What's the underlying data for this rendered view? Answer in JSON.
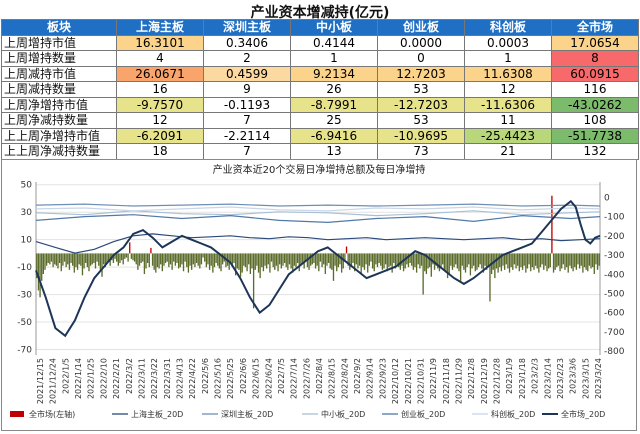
{
  "table": {
    "title": "产业资本增减持(亿元)",
    "headers": [
      "板块",
      "上海主板",
      "深圳主板",
      "中小板",
      "创业板",
      "科创板",
      "全市场"
    ],
    "rows": [
      {
        "label": "上周增持市值",
        "values": [
          "16.3101",
          "0.3406",
          "0.4144",
          "0.0000",
          "0.0003",
          "17.0654"
        ],
        "colors": [
          "#fbd38a",
          "#ffffff",
          "#ffffff",
          "#ffffff",
          "#ffffff",
          "#fbd38a"
        ]
      },
      {
        "label": "上周增持数量",
        "values": [
          "4",
          "2",
          "1",
          "0",
          "1",
          "8"
        ],
        "colors": [
          "#ffffff",
          "#ffffff",
          "#ffffff",
          "#ffffff",
          "#ffffff",
          "#f8696b"
        ]
      },
      {
        "label": "上周减持市值",
        "values": [
          "26.0671",
          "0.4599",
          "9.2134",
          "12.7203",
          "11.6308",
          "60.0915"
        ],
        "colors": [
          "#f9a46b",
          "#fcd9a0",
          "#fbd38a",
          "#fbd38a",
          "#fbd38a",
          "#f8696b"
        ]
      },
      {
        "label": "上周减持数量",
        "values": [
          "16",
          "9",
          "26",
          "53",
          "12",
          "116"
        ],
        "colors": [
          "#ffffff",
          "#ffffff",
          "#ffffff",
          "#ffffff",
          "#ffffff",
          "#ffffff"
        ]
      },
      {
        "label": "上周净增持市值",
        "values": [
          "-9.7570",
          "-0.1193",
          "-8.7991",
          "-12.7203",
          "-11.6306",
          "-43.0262"
        ],
        "colors": [
          "#e6e38a",
          "#ffffff",
          "#e6e38a",
          "#e6e38a",
          "#e6e38a",
          "#7cbb6b"
        ]
      },
      {
        "label": "上周净减持数量",
        "values": [
          "12",
          "7",
          "25",
          "53",
          "11",
          "108"
        ],
        "colors": [
          "#ffffff",
          "#ffffff",
          "#ffffff",
          "#ffffff",
          "#ffffff",
          "#ffffff"
        ]
      },
      {
        "label": "上上周净增持市值",
        "values": [
          "-6.2091",
          "-2.2114",
          "-6.9416",
          "-10.9695",
          "-25.4423",
          "-51.7738"
        ],
        "colors": [
          "#e6e38a",
          "#ffffff",
          "#e6e38a",
          "#e6e38a",
          "#b8d77a",
          "#7cbb6b"
        ]
      },
      {
        "label": "上上周净减持数量",
        "values": [
          "18",
          "7",
          "13",
          "73",
          "21",
          "132"
        ],
        "colors": [
          "#ffffff",
          "#ffffff",
          "#ffffff",
          "#ffffff",
          "#ffffff",
          "#ffffff"
        ]
      }
    ]
  },
  "chart_data": {
    "type": "bar",
    "title": "产业资本近20个交易日净增持总额及每日净增持",
    "left_axis": {
      "ticks": [
        50,
        30,
        10,
        -10,
        -30,
        -50,
        -70
      ],
      "ylim": [
        -74,
        52
      ]
    },
    "right_axis": {
      "ticks": [
        0,
        -100,
        -200,
        -300,
        -400,
        -500,
        -600,
        -700,
        -800
      ],
      "ylim": [
        -820,
        80
      ]
    },
    "x_labels": [
      "2021/12/15",
      "2021/12/24",
      "2022/1/5",
      "2022/1/14",
      "2022/1/25",
      "2022/2/10",
      "2022/2/21",
      "2022/3/2",
      "2022/3/11",
      "2022/3/22",
      "2022/3/31",
      "2022/4/13",
      "2022/4/22",
      "2022/5/6",
      "2022/5/16",
      "2022/5/25",
      "2022/6/6",
      "2022/6/15",
      "2022/6/24",
      "2022/7/5",
      "2022/7/14",
      "2022/7/26",
      "2022/8/4",
      "2022/8/15",
      "2022/8/24",
      "2022/9/2",
      "2022/9/14",
      "2022/9/23",
      "2022/10/12",
      "2022/10/21",
      "2022/10/31",
      "2022/11/9",
      "2022/11/18",
      "2022/11/29",
      "2022/12/8",
      "2022/12/19",
      "2022/12/28",
      "2023/1/9",
      "2023/1/18",
      "2023/2/3",
      "2023/2/14",
      "2023/2/23",
      "2023/3/6",
      "2023/3/15",
      "2023/3/24"
    ],
    "bar_series": {
      "name": "全市场(左轴)",
      "axis": "left",
      "color": "#c00000",
      "negative_color": "#5a6b2a",
      "values": [
        -18,
        -27,
        -32,
        -20,
        -15,
        -12,
        -9,
        -7,
        -8,
        -6,
        -10,
        -8,
        -9,
        -11,
        -7,
        -13,
        -9,
        -6,
        -10,
        -8,
        -12,
        -7,
        -9,
        -14,
        -10,
        -12,
        -8,
        -9,
        -16,
        -11,
        -7,
        -10,
        -13,
        -9,
        -8,
        -7,
        -11,
        -6,
        -9,
        -12,
        -17,
        -8,
        -10,
        -7,
        -6,
        -9,
        -5,
        -7,
        -4,
        -6,
        -9,
        -7,
        -5,
        -8,
        -4,
        -3,
        -6,
        8,
        -4,
        -5,
        -6,
        -8,
        -12,
        -9,
        -7,
        -6,
        -15,
        -11,
        -7,
        -10,
        4,
        -9,
        -12,
        -14,
        -10,
        -11,
        -8,
        -13,
        -9,
        -7,
        -6,
        -10,
        -8,
        -12,
        -6,
        -9,
        -7,
        -11,
        -10,
        -8,
        -13,
        -6,
        -10,
        -14,
        -9,
        -12,
        -8,
        -10,
        -7,
        -9,
        -11,
        -8,
        -3,
        -6,
        -10,
        -8,
        -12,
        -9,
        -14,
        -10,
        -7,
        -9,
        -11,
        -13,
        -8,
        -6,
        -10,
        -9,
        -12,
        -8,
        -10,
        -7,
        -16,
        -11,
        -12,
        -17,
        -14,
        -9,
        -10,
        -13,
        -8,
        -15,
        -11,
        -40,
        -12,
        -9,
        -14,
        -18,
        -10,
        -13,
        -9,
        -11,
        -8,
        -14,
        -6,
        -10,
        -12,
        -9,
        -13,
        -8,
        -11,
        -9,
        -7,
        -10,
        -12,
        -8,
        -11,
        -14,
        -9,
        -10,
        -7,
        -13,
        -9,
        -8,
        -11,
        -6,
        -10,
        -12,
        -9,
        -8,
        -7,
        -11,
        -9,
        -13,
        -6,
        -10,
        -8,
        -15,
        -9,
        -7,
        -11,
        -12,
        -20,
        -9,
        -13,
        -10,
        -8,
        -14,
        -11,
        -6,
        5,
        -9,
        -12,
        -10,
        -7,
        -13,
        -8,
        -11,
        -9,
        -15,
        -10,
        -12,
        -8,
        -14,
        -9,
        -6,
        -11,
        -13,
        -8,
        -10,
        -7,
        -9,
        -12,
        -11,
        -8,
        -13,
        -10,
        -9,
        -14,
        -7,
        -11,
        -8,
        -10,
        -12,
        -9,
        -13,
        -11,
        -8,
        -10,
        -7,
        -9,
        -12,
        -10,
        -14,
        -8,
        -11,
        -9,
        -30,
        -13,
        -15,
        -11,
        -10,
        -17,
        -8,
        -12,
        -9,
        -11,
        -13,
        -10,
        -8,
        -12,
        -14,
        -18,
        -15,
        -9,
        -12,
        -10,
        -8,
        -11,
        -13,
        -20,
        -9,
        -12,
        -14,
        -10,
        -8,
        -16,
        -11,
        -9,
        -13,
        -12,
        -10,
        -8,
        -11,
        -14,
        -9,
        -12,
        -10,
        -35,
        -15,
        -12,
        -18,
        -11,
        -14,
        -10,
        -13,
        -9,
        -12,
        -8,
        -11,
        -14,
        -10,
        -12,
        -8,
        -11,
        -9,
        -13,
        -10,
        -12,
        -9,
        -14,
        -11,
        -8,
        -13,
        -10,
        -12,
        -9,
        -11,
        -14,
        -10,
        -8,
        -12,
        -9,
        -13,
        -11,
        -10,
        42,
        -14,
        -12,
        -10,
        -9,
        -13,
        -11,
        -8,
        -12,
        -10,
        -14,
        -9,
        -11,
        -13,
        -10,
        -12,
        -8,
        -11,
        -9,
        -14,
        -10,
        -12,
        -13,
        -9,
        -11,
        -10,
        -15,
        -8,
        -12,
        -9
      ]
    },
    "line_series": [
      {
        "name": "上海主板_20D",
        "axis": "right",
        "color": "#2b4a7a",
        "points": [
          [
            0,
            -230
          ],
          [
            4,
            -260
          ],
          [
            8,
            -290
          ],
          [
            12,
            -270
          ],
          [
            16,
            -230
          ],
          [
            20,
            -200
          ],
          [
            24,
            -190
          ],
          [
            28,
            -200
          ],
          [
            32,
            -210
          ],
          [
            36,
            -205
          ],
          [
            40,
            -200
          ],
          [
            44,
            -210
          ],
          [
            48,
            -215
          ],
          [
            52,
            -205
          ],
          [
            56,
            -210
          ],
          [
            60,
            -220
          ],
          [
            64,
            -215
          ],
          [
            68,
            -210
          ],
          [
            72,
            -220
          ],
          [
            76,
            -215
          ],
          [
            80,
            -210
          ],
          [
            84,
            -215
          ],
          [
            88,
            -220
          ],
          [
            92,
            -215
          ],
          [
            96,
            -210
          ],
          [
            100,
            -220
          ],
          [
            104,
            -215
          ],
          [
            108,
            -225
          ],
          [
            112,
            -220
          ],
          [
            116,
            -215
          ]
        ]
      },
      {
        "name": "深圳主板_20D",
        "axis": "right",
        "color": "#6e8fb5",
        "points": [
          [
            0,
            -40
          ],
          [
            10,
            -35
          ],
          [
            20,
            -45
          ],
          [
            30,
            -40
          ],
          [
            40,
            -35
          ],
          [
            50,
            -45
          ],
          [
            60,
            -40
          ],
          [
            70,
            -45
          ],
          [
            80,
            -40
          ],
          [
            90,
            -35
          ],
          [
            100,
            -45
          ],
          [
            110,
            -40
          ],
          [
            116,
            -45
          ]
        ]
      },
      {
        "name": "中小板_20D",
        "axis": "right",
        "color": "#a8bfd6",
        "points": [
          [
            0,
            -80
          ],
          [
            10,
            -90
          ],
          [
            20,
            -70
          ],
          [
            30,
            -85
          ],
          [
            40,
            -90
          ],
          [
            50,
            -75
          ],
          [
            60,
            -80
          ],
          [
            70,
            -95
          ],
          [
            80,
            -85
          ],
          [
            90,
            -70
          ],
          [
            100,
            -90
          ],
          [
            110,
            -80
          ],
          [
            116,
            -75
          ]
        ]
      },
      {
        "name": "创业板_20D",
        "axis": "right",
        "color": "#4f79a8",
        "points": [
          [
            0,
            -120
          ],
          [
            10,
            -100
          ],
          [
            20,
            -90
          ],
          [
            30,
            -110
          ],
          [
            40,
            -95
          ],
          [
            50,
            -120
          ],
          [
            60,
            -130
          ],
          [
            70,
            -110
          ],
          [
            80,
            -100
          ],
          [
            90,
            -125
          ],
          [
            100,
            -95
          ],
          [
            110,
            -110
          ],
          [
            116,
            -100
          ]
        ]
      },
      {
        "name": "科创板_20D",
        "axis": "right",
        "color": "#c9d6e6",
        "points": [
          [
            0,
            -60
          ],
          [
            10,
            -55
          ],
          [
            20,
            -70
          ],
          [
            30,
            -60
          ],
          [
            40,
            -50
          ],
          [
            50,
            -65
          ],
          [
            60,
            -70
          ],
          [
            70,
            -55
          ],
          [
            80,
            -60
          ],
          [
            90,
            -50
          ],
          [
            100,
            -65
          ],
          [
            110,
            -55
          ],
          [
            116,
            -60
          ]
        ]
      },
      {
        "name": "全市场_20D",
        "axis": "right",
        "color": "#1d3557",
        "points": [
          [
            0,
            -380
          ],
          [
            2,
            -520
          ],
          [
            4,
            -680
          ],
          [
            6,
            -720
          ],
          [
            8,
            -640
          ],
          [
            10,
            -520
          ],
          [
            12,
            -420
          ],
          [
            14,
            -360
          ],
          [
            16,
            -300
          ],
          [
            18,
            -260
          ],
          [
            20,
            -190
          ],
          [
            22,
            -170
          ],
          [
            24,
            -210
          ],
          [
            26,
            -260
          ],
          [
            28,
            -230
          ],
          [
            30,
            -200
          ],
          [
            32,
            -220
          ],
          [
            34,
            -240
          ],
          [
            36,
            -260
          ],
          [
            38,
            -300
          ],
          [
            40,
            -340
          ],
          [
            42,
            -420
          ],
          [
            44,
            -520
          ],
          [
            46,
            -600
          ],
          [
            48,
            -560
          ],
          [
            50,
            -480
          ],
          [
            52,
            -400
          ],
          [
            54,
            -360
          ],
          [
            56,
            -320
          ],
          [
            58,
            -280
          ],
          [
            60,
            -260
          ],
          [
            62,
            -300
          ],
          [
            64,
            -340
          ],
          [
            66,
            -380
          ],
          [
            68,
            -420
          ],
          [
            70,
            -400
          ],
          [
            72,
            -380
          ],
          [
            74,
            -360
          ],
          [
            76,
            -320
          ],
          [
            78,
            -280
          ],
          [
            80,
            -300
          ],
          [
            82,
            -340
          ],
          [
            84,
            -380
          ],
          [
            86,
            -420
          ],
          [
            88,
            -450
          ],
          [
            90,
            -420
          ],
          [
            92,
            -380
          ],
          [
            94,
            -340
          ],
          [
            96,
            -300
          ],
          [
            98,
            -280
          ],
          [
            100,
            -260
          ],
          [
            102,
            -240
          ],
          [
            104,
            -180
          ],
          [
            106,
            -120
          ],
          [
            108,
            -60
          ],
          [
            110,
            -20
          ],
          [
            111,
            -50
          ],
          [
            112,
            -140
          ],
          [
            113,
            -220
          ],
          [
            114,
            -240
          ],
          [
            115,
            -210
          ],
          [
            116,
            -200
          ]
        ]
      }
    ],
    "legend": [
      "全市场(左轴)",
      "上海主板_20D",
      "深圳主板_20D",
      "中小板_20D",
      "创业板_20D",
      "科创板_20D",
      "全市场_20D"
    ]
  }
}
